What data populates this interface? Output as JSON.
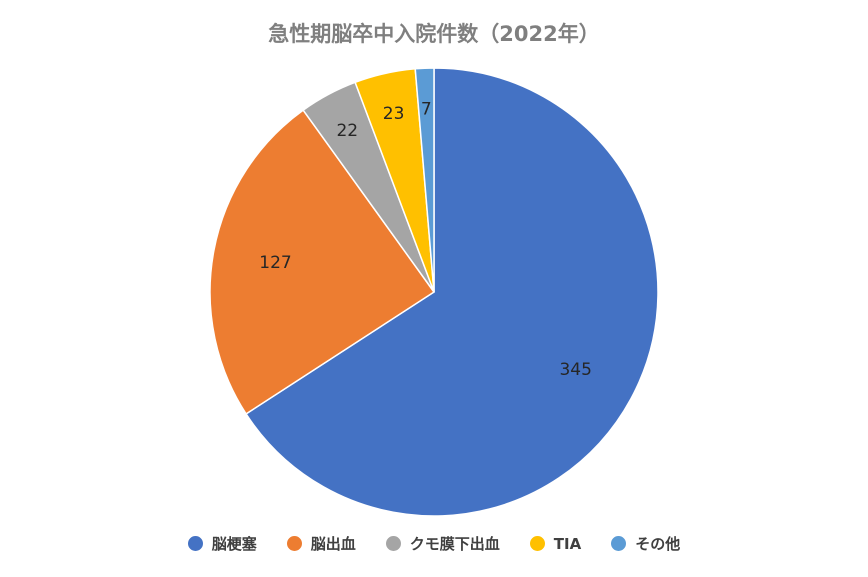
{
  "chart_data": {
    "type": "pie",
    "title": "急性期脳卒中入院件数（2022年）",
    "categories": [
      "脳梗塞",
      "脳出血",
      "クモ膜下出血",
      "TIA",
      "その他"
    ],
    "values": [
      345,
      127,
      22,
      23,
      7
    ],
    "colors": [
      "#4472c4",
      "#ed7d31",
      "#a5a5a5",
      "#ffc000",
      "#5b9bd5"
    ],
    "data_labels": [
      "345",
      "127",
      "22",
      "23",
      "7"
    ],
    "legend_position": "bottom",
    "start_angle": "top, clockwise"
  }
}
